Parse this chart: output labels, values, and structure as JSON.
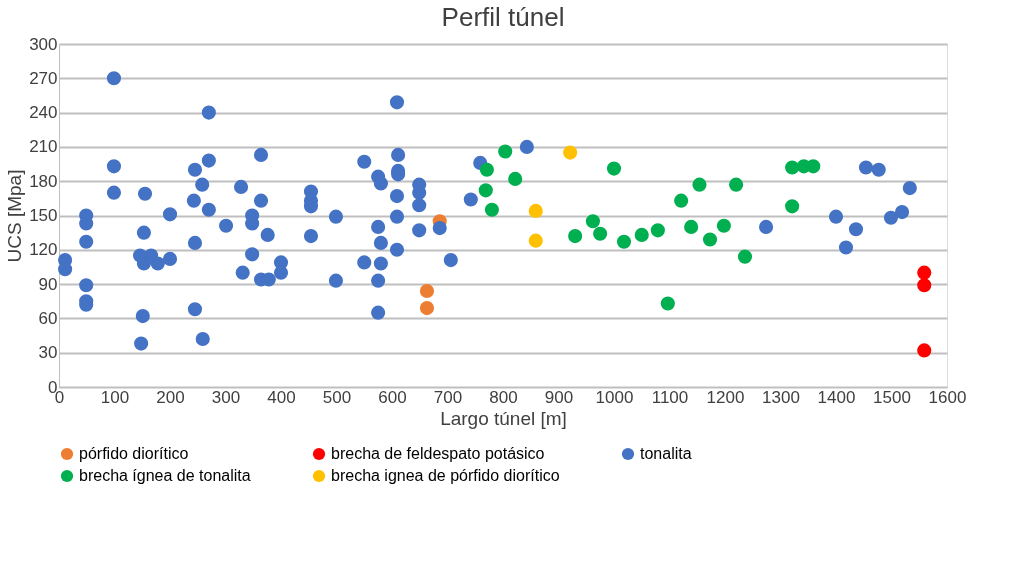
{
  "chart_data": {
    "type": "scatter",
    "title": "Perfil túnel",
    "xlabel": "Largo túnel [m]",
    "ylabel": "UCS  [Mpa]",
    "xlim": [
      0,
      1600
    ],
    "xticks": [
      0,
      100,
      200,
      300,
      400,
      500,
      600,
      700,
      800,
      900,
      1000,
      1100,
      1200,
      1300,
      1400,
      1500,
      1600
    ],
    "ylim": [
      0,
      300
    ],
    "yticks": [
      0,
      30,
      60,
      90,
      120,
      150,
      180,
      210,
      240,
      270,
      300
    ],
    "grid": "y",
    "legend": "bottom",
    "marker": "circle",
    "series": [
      {
        "name": "pórfido diorítico",
        "color": "#ed7d31",
        "x": [
          686,
          663,
          663
        ],
        "values": [
          145,
          84,
          69
        ]
      },
      {
        "name": "brecha de feldespato potásico",
        "color": "#ff0000",
        "x": [
          1559,
          1559,
          1559
        ],
        "values": [
          100,
          89,
          32
        ]
      },
      {
        "name": "tonalita",
        "color": "#4472c4",
        "x": [
          11,
          11,
          49,
          49,
          49,
          49,
          49,
          49,
          99,
          99,
          99,
          148,
          151,
          153,
          146,
          153,
          166,
          178,
          200,
          155,
          200,
          245,
          258,
          243,
          270,
          270,
          270,
          245,
          245,
          259,
          301,
          328,
          331,
          348,
          348,
          348,
          364,
          364,
          376,
          364,
          378,
          400,
          400,
          454,
          454,
          454,
          454,
          499,
          499,
          550,
          550,
          575,
          580,
          575,
          580,
          580,
          575,
          575,
          609,
          611,
          611,
          611,
          609,
          609,
          609,
          649,
          649,
          649,
          649,
          686,
          706,
          742,
          759,
          843,
          1274,
          1400,
          1418,
          1436,
          1454,
          1477,
          1499,
          1519,
          1533
        ],
        "values": [
          111,
          103,
          150,
          143,
          127,
          89,
          75,
          72,
          270,
          193,
          170,
          38,
          62,
          135,
          115,
          108,
          115,
          108,
          112,
          169,
          151,
          190,
          177,
          163,
          198,
          240,
          155,
          126,
          68,
          42,
          141,
          175,
          100,
          150,
          143,
          116,
          203,
          163,
          133,
          94,
          94,
          109,
          100,
          171,
          163,
          158,
          132,
          149,
          93,
          197,
          109,
          184,
          178,
          140,
          126,
          108,
          93,
          65,
          249,
          203,
          189,
          186,
          167,
          149,
          120,
          177,
          170,
          159,
          137,
          139,
          111,
          164,
          196,
          210,
          140,
          149,
          122,
          138,
          192,
          190,
          148,
          153,
          174
        ]
      },
      {
        "name": "brecha ígnea de tonalita",
        "color": "#00b050",
        "x": [
          804,
          771,
          822,
          769,
          780,
          1000,
          930,
          962,
          975,
          1018,
          1050,
          1079,
          1097,
          1121,
          1139,
          1154,
          1173,
          1198,
          1220,
          1236,
          1321,
          1342,
          1359,
          1321
        ],
        "values": [
          206,
          190,
          182,
          172,
          155,
          191,
          132,
          145,
          134,
          127,
          133,
          137,
          73,
          163,
          140,
          177,
          129,
          141,
          177,
          114,
          192,
          193,
          193,
          158
        ]
      },
      {
        "name": "brecha ignea de pórfido diorítico",
        "color": "#ffc000",
        "x": [
          921,
          859,
          859
        ],
        "values": [
          205,
          154,
          128
        ]
      }
    ]
  }
}
